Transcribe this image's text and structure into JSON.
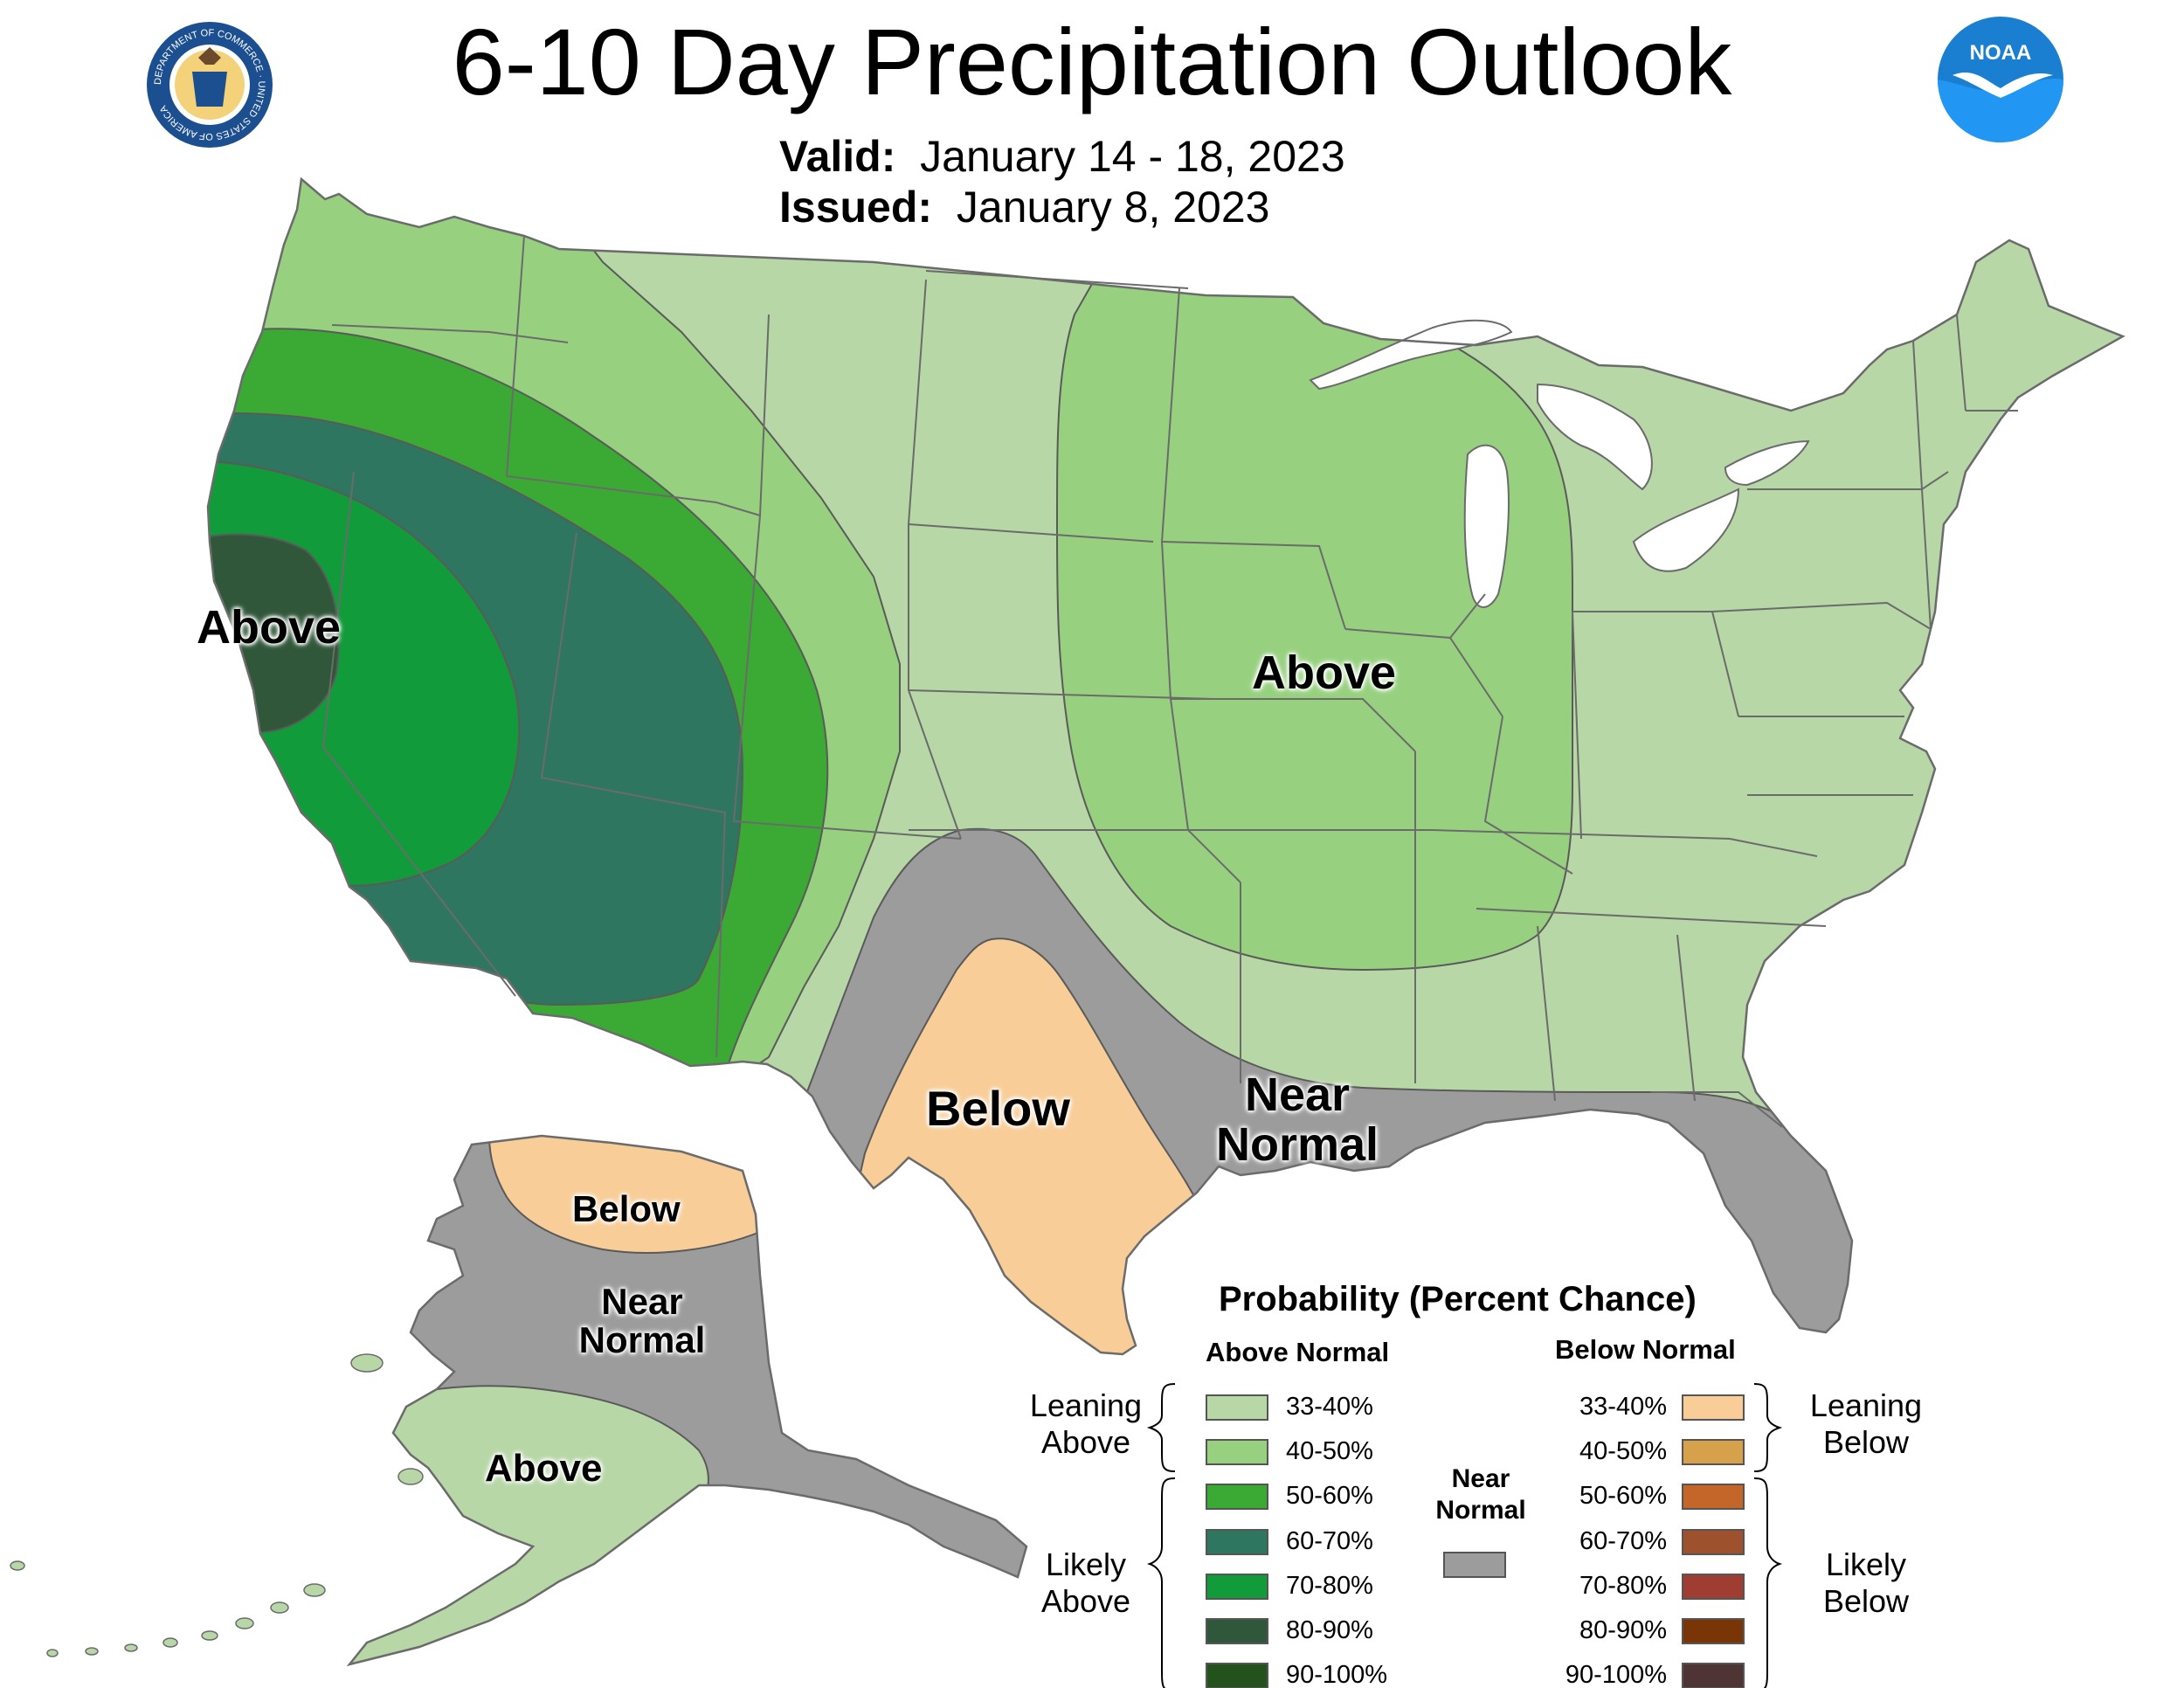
{
  "header": {
    "title": "6-10 Day Precipitation Outlook",
    "valid_label": "Valid:",
    "valid_value": "January 14 - 18, 2023",
    "issued_label": "Issued:",
    "issued_value": "January 8, 2023"
  },
  "logos": {
    "commerce_ring_text": "DEPARTMENT OF COMMERCE · UNITED STATES OF AMERICA",
    "noaa_text": "NOAA"
  },
  "map_labels": {
    "west_above": "Above",
    "midwest_above": "Above",
    "texas_below": "Below",
    "gulf_near_normal": "Near Normal",
    "alaska_below": "Below",
    "alaska_near_normal": "Near Normal",
    "alaska_above": "Above"
  },
  "legend": {
    "title": "Probability (Percent Chance)",
    "above_header": "Above Normal",
    "below_header": "Below Normal",
    "near_normal_label": "Near Normal",
    "leaning_above": "Leaning Above",
    "likely_above": "Likely Above",
    "leaning_below": "Leaning Below",
    "likely_below": "Likely Below",
    "above_classes": [
      {
        "label": "33-40%",
        "color": "#b7d7a6"
      },
      {
        "label": "40-50%",
        "color": "#97d17f"
      },
      {
        "label": "50-60%",
        "color": "#3aaa35"
      },
      {
        "label": "60-70%",
        "color": "#2e7660"
      },
      {
        "label": "70-80%",
        "color": "#119b3a"
      },
      {
        "label": "80-90%",
        "color": "#31573a"
      },
      {
        "label": "90-100%",
        "color": "#24521d"
      }
    ],
    "below_classes": [
      {
        "label": "33-40%",
        "color": "#f8cd97"
      },
      {
        "label": "40-50%",
        "color": "#d6a14b"
      },
      {
        "label": "50-60%",
        "color": "#c4652a"
      },
      {
        "label": "60-70%",
        "color": "#9e512d"
      },
      {
        "label": "70-80%",
        "color": "#9f3d33"
      },
      {
        "label": "80-90%",
        "color": "#7a3506"
      },
      {
        "label": "90-100%",
        "color": "#4e3435"
      }
    ],
    "near_normal_color": "#9c9c9c"
  },
  "colors": {
    "state_lines": "#6b6b6b",
    "contour_lines": "#5a5a5a",
    "water": "#ffffff",
    "noaa_blue": "#1a7fd1"
  }
}
